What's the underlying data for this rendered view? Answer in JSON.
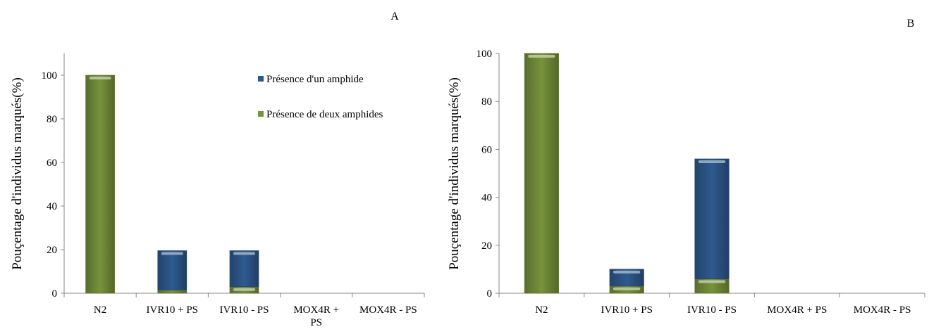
{
  "chart_data": [
    {
      "panel_label": "A",
      "type": "bar",
      "stacked": true,
      "ylabel": "Pouçentage d'individus marqués(%)",
      "xlabel": "",
      "ylim": [
        0,
        110
      ],
      "yticks": [
        0,
        20,
        40,
        60,
        80,
        100
      ],
      "ytick_labels": [
        "0",
        "20",
        "40",
        "60",
        "80",
        "100"
      ],
      "categories": [
        "N2",
        "IVR10 + PS",
        "IVR10 - PS",
        "MOX4R + PS",
        "MOX4R - PS"
      ],
      "category_label_lines": [
        [
          "N2"
        ],
        [
          "IVR10 + PS"
        ],
        [
          "IVR10 - PS"
        ],
        [
          "MOX4R +",
          "PS"
        ],
        [
          "MOX4R - PS"
        ]
      ],
      "series": [
        {
          "name": "Présence de deux amphides",
          "color": "#77933c",
          "values": [
            100,
            1.5,
            3,
            0,
            0
          ]
        },
        {
          "name": "Présence d'un amphide",
          "color": "#2f5a8f",
          "values": [
            0,
            18,
            16.5,
            0,
            0
          ]
        }
      ],
      "legend_order": [
        "Présence d'un amphide",
        "Présence de deux amphides"
      ],
      "legend_position": "top-right",
      "grid": false
    },
    {
      "panel_label": "B",
      "type": "bar",
      "stacked": true,
      "ylabel": "Pouçentage d'individus marqués(%)",
      "xlabel": "",
      "ylim": [
        0,
        100
      ],
      "yticks": [
        0,
        20,
        40,
        60,
        80,
        100
      ],
      "ytick_labels": [
        "0",
        "20",
        "40",
        "60",
        "80",
        "100"
      ],
      "categories": [
        "N2",
        "IVR10 + PS",
        "IVR10 - PS",
        "MOX4R + PS",
        "MOX4R - PS"
      ],
      "category_label_lines": [
        [
          "N2"
        ],
        [
          "IVR10 + PS"
        ],
        [
          "IVR10 - PS"
        ],
        [
          "MOX4R + PS"
        ],
        [
          "MOX4R - PS"
        ]
      ],
      "series": [
        {
          "name": "Présence de deux amphides",
          "color": "#77933c",
          "values": [
            100,
            3,
            6,
            0,
            0
          ]
        },
        {
          "name": "Présence d'un amphide",
          "color": "#2f5a8f",
          "values": [
            0,
            7,
            50,
            0,
            0
          ]
        }
      ],
      "grid": false
    }
  ]
}
